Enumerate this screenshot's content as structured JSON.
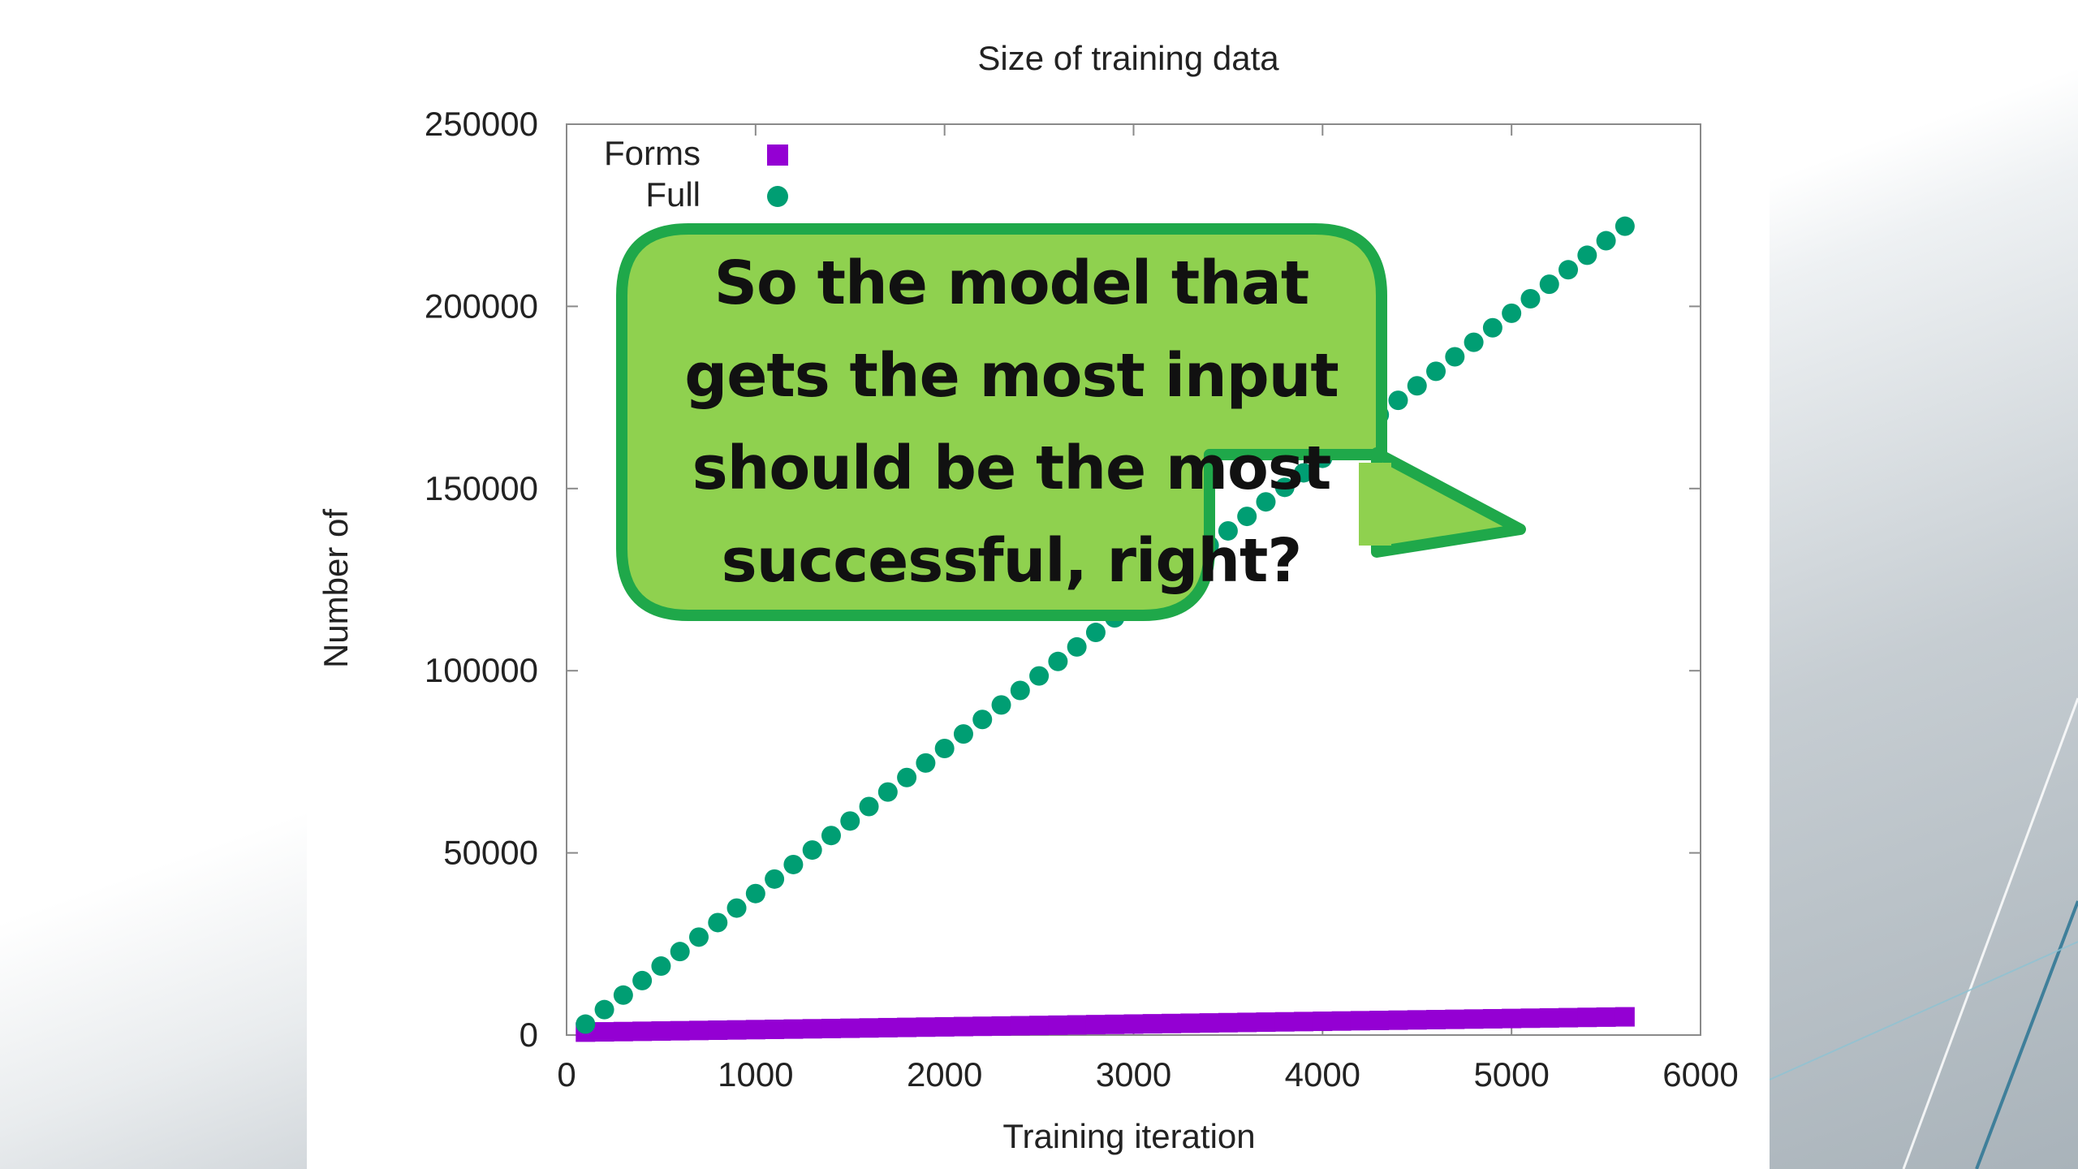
{
  "chart_data": {
    "type": "scatter",
    "title": "Size of training data",
    "xlabel": "Training iteration",
    "ylabel": "Number of",
    "xlim": [
      0,
      6000
    ],
    "ylim": [
      0,
      250000
    ],
    "x_ticks": [
      "0",
      "1000",
      "2000",
      "3000",
      "4000",
      "5000",
      "6000"
    ],
    "y_ticks": [
      "0",
      "50000",
      "100000",
      "150000",
      "200000",
      "250000"
    ],
    "legend": {
      "position": "top-left"
    },
    "series": [
      {
        "name": "Forms",
        "marker": "square",
        "color": "#9400d3",
        "x_start": 100,
        "x_end": 5600,
        "x_step": 100,
        "y_start": 800,
        "y_end": 5000
      },
      {
        "name": "Full",
        "marker": "circle",
        "color": "#009e73",
        "x_start": 100,
        "x_end": 5600,
        "x_step": 100,
        "y_start": 3000,
        "y_end": 222000
      }
    ]
  },
  "callout": {
    "text": "So the model that gets the most input should be the most successful, right?",
    "fill": "#8fd14f",
    "stroke": "#1fa84a"
  }
}
